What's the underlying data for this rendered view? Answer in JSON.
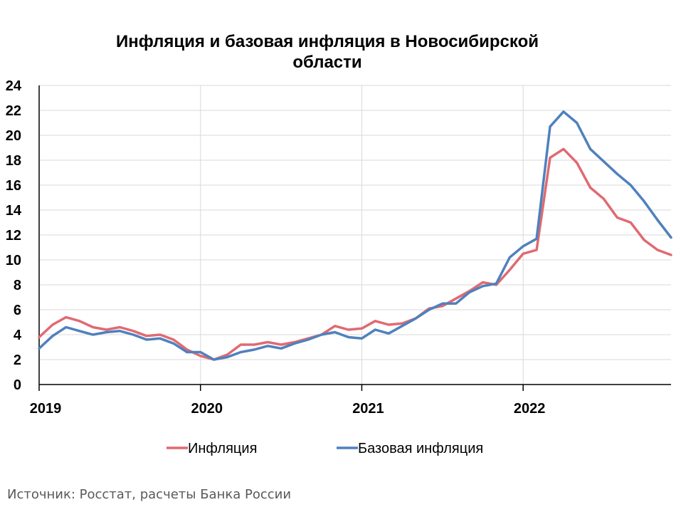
{
  "chart_data": {
    "type": "line",
    "title_lines": [
      "Инфляция и базовая инфляция в Новосибирской",
      "области"
    ],
    "xlabel": "",
    "ylabel": "",
    "ylim": [
      0,
      24
    ],
    "yticks": [
      0,
      2,
      4,
      6,
      8,
      10,
      12,
      14,
      16,
      18,
      20,
      22,
      24
    ],
    "xticks": [
      "2019",
      "2020",
      "2021",
      "2022"
    ],
    "x_start": "2019-01",
    "x_end": "2022-12",
    "grid": true,
    "legend_position": "bottom",
    "series": [
      {
        "name": "Инфляция",
        "color": "#E06A72",
        "values": [
          3.8,
          4.8,
          5.4,
          5.1,
          4.6,
          4.4,
          4.6,
          4.3,
          3.9,
          4.0,
          3.6,
          2.8,
          2.3,
          2.0,
          2.4,
          3.2,
          3.2,
          3.4,
          3.2,
          3.4,
          3.7,
          4.0,
          4.7,
          4.4,
          4.5,
          5.1,
          4.8,
          4.9,
          5.3,
          6.1,
          6.3,
          6.9,
          7.5,
          8.2,
          8.0,
          9.2,
          10.5,
          10.8,
          18.2,
          18.9,
          17.8,
          15.8,
          14.9,
          13.4,
          13.0,
          11.6,
          10.8,
          10.4
        ]
      },
      {
        "name": "Базовая инфляция",
        "color": "#4F81BD",
        "values": [
          2.9,
          3.9,
          4.6,
          4.3,
          4.0,
          4.2,
          4.3,
          4.0,
          3.6,
          3.7,
          3.3,
          2.6,
          2.6,
          2.0,
          2.2,
          2.6,
          2.8,
          3.1,
          2.9,
          3.3,
          3.6,
          4.0,
          4.2,
          3.8,
          3.7,
          4.4,
          4.1,
          4.7,
          5.3,
          6.0,
          6.5,
          6.5,
          7.4,
          7.9,
          8.1,
          10.2,
          11.1,
          11.7,
          20.7,
          21.9,
          21.0,
          18.9,
          17.9,
          16.9,
          16.0,
          14.7,
          13.2,
          11.8
        ]
      }
    ]
  },
  "source_text": "Источник: Росстат, расчеты Банка России"
}
